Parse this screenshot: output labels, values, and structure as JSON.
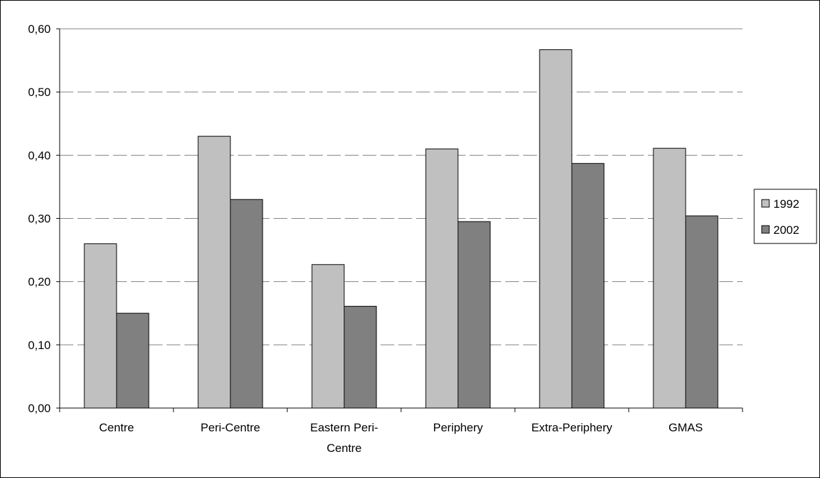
{
  "chart_data": {
    "type": "bar",
    "title": "",
    "xlabel": "",
    "ylabel": "",
    "categories": [
      [
        "Centre"
      ],
      [
        "Peri-Centre"
      ],
      [
        "Eastern Peri-",
        "Centre"
      ],
      [
        "Periphery"
      ],
      [
        "Extra-Periphery"
      ],
      [
        "GMAS"
      ]
    ],
    "series": [
      {
        "name": "1992",
        "color": "#c0c0c0",
        "values": [
          0.26,
          0.43,
          0.227,
          0.41,
          0.567,
          0.411
        ]
      },
      {
        "name": "2002",
        "color": "#808080",
        "values": [
          0.15,
          0.33,
          0.161,
          0.295,
          0.387,
          0.304
        ]
      }
    ],
    "ylim": [
      0,
      0.6
    ],
    "yticks": [
      "0,00",
      "0,10",
      "0,20",
      "0,30",
      "0,40",
      "0,50",
      "0,60"
    ],
    "grid": true,
    "legend_position": "right"
  }
}
